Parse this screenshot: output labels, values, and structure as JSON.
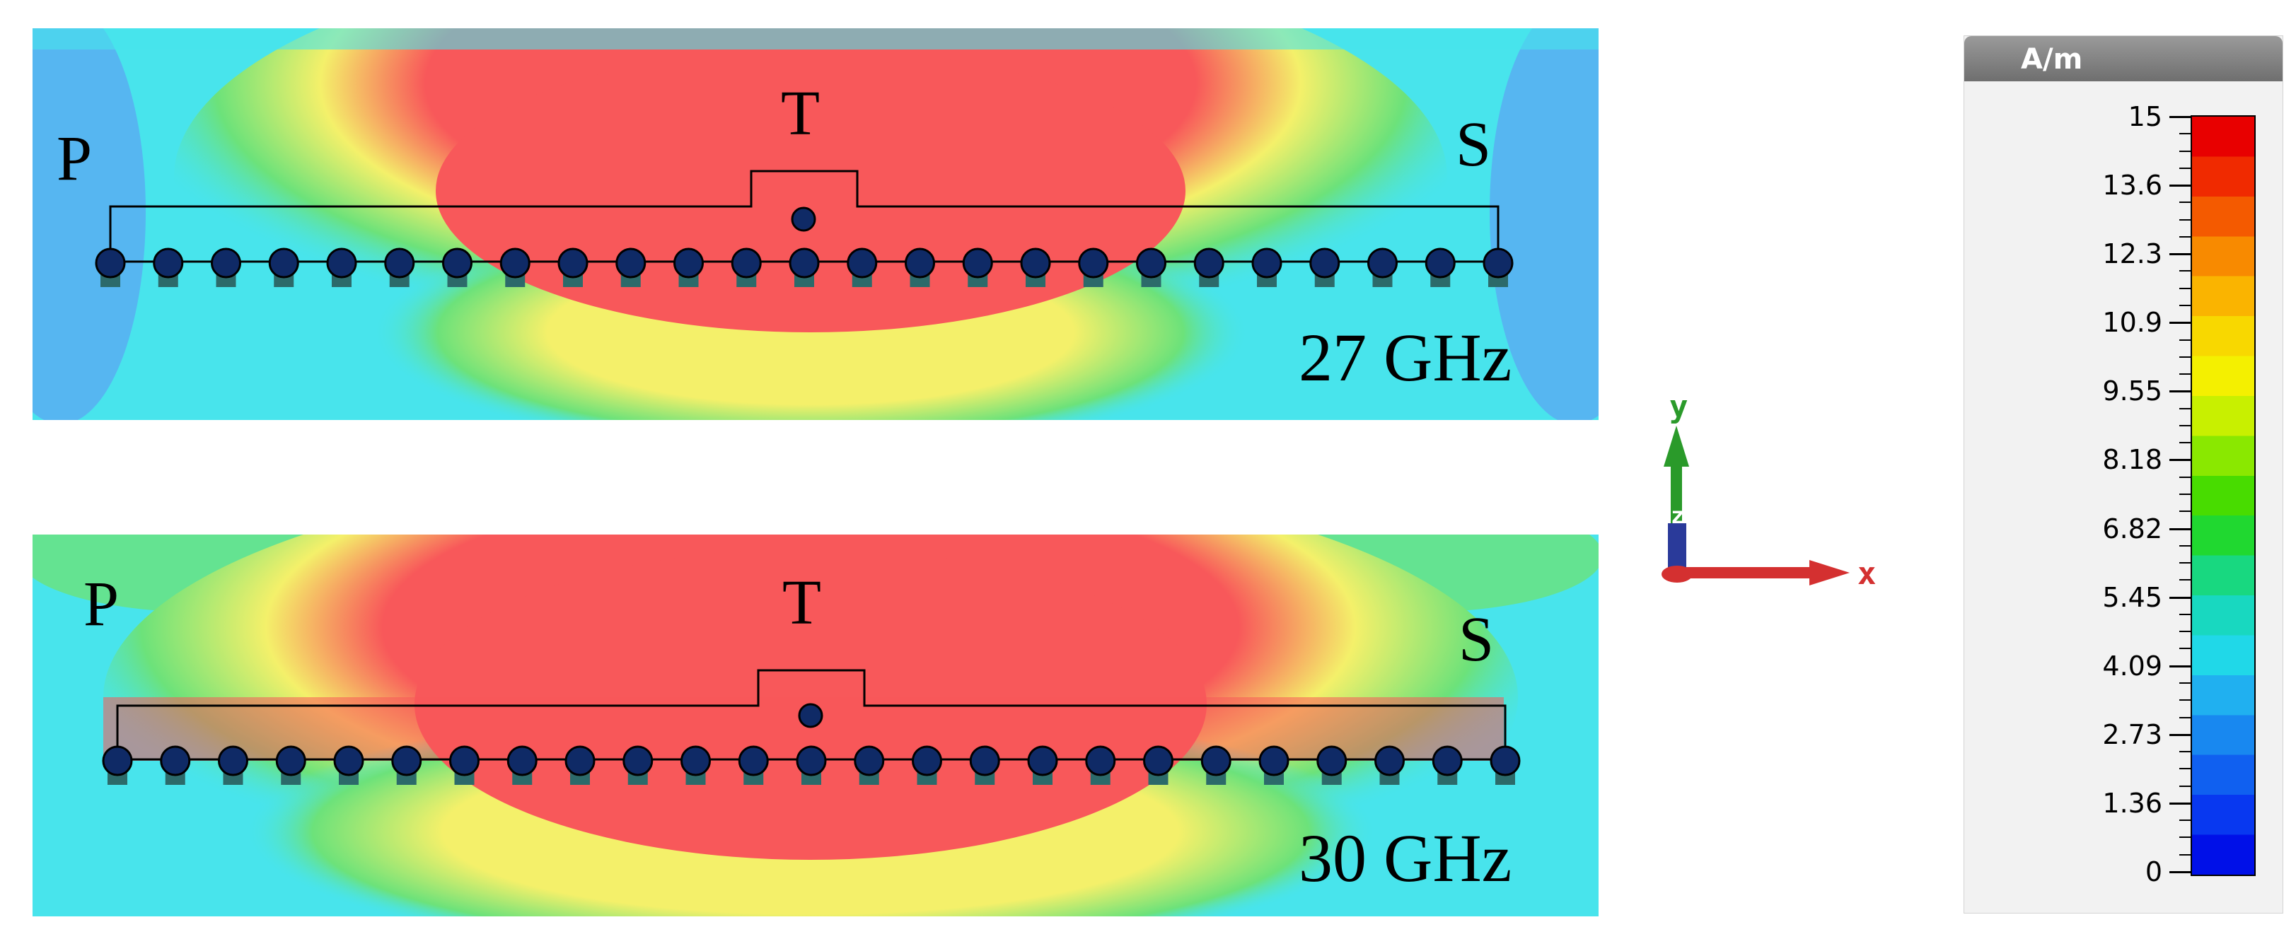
{
  "panels": [
    {
      "port_left": "P",
      "port_top": "T",
      "port_right": "S",
      "frequency": "27 GHz"
    },
    {
      "port_left": "P",
      "port_top": "T",
      "port_right": "S",
      "frequency": "30 GHz"
    }
  ],
  "axes": {
    "x": "x",
    "y": "y",
    "z": "z"
  },
  "legend": {
    "unit": "A/m",
    "max": 15,
    "min": 0,
    "ticks": [
      "15",
      "13.6",
      "12.3",
      "10.9",
      "9.55",
      "8.18",
      "6.82",
      "5.45",
      "4.09",
      "2.73",
      "1.36",
      "0"
    ]
  },
  "colors": {
    "background_field": "#48e4ec",
    "edge_field": "#5aaaf2",
    "low_green": "#6ce27a",
    "mid_yellow": "#f4f06a",
    "high_red": "#f8585a",
    "via": "#0f2a66",
    "axis_x": "#d43030",
    "axis_y": "#2a9a2a",
    "axis_z": "#2a3a9a"
  }
}
